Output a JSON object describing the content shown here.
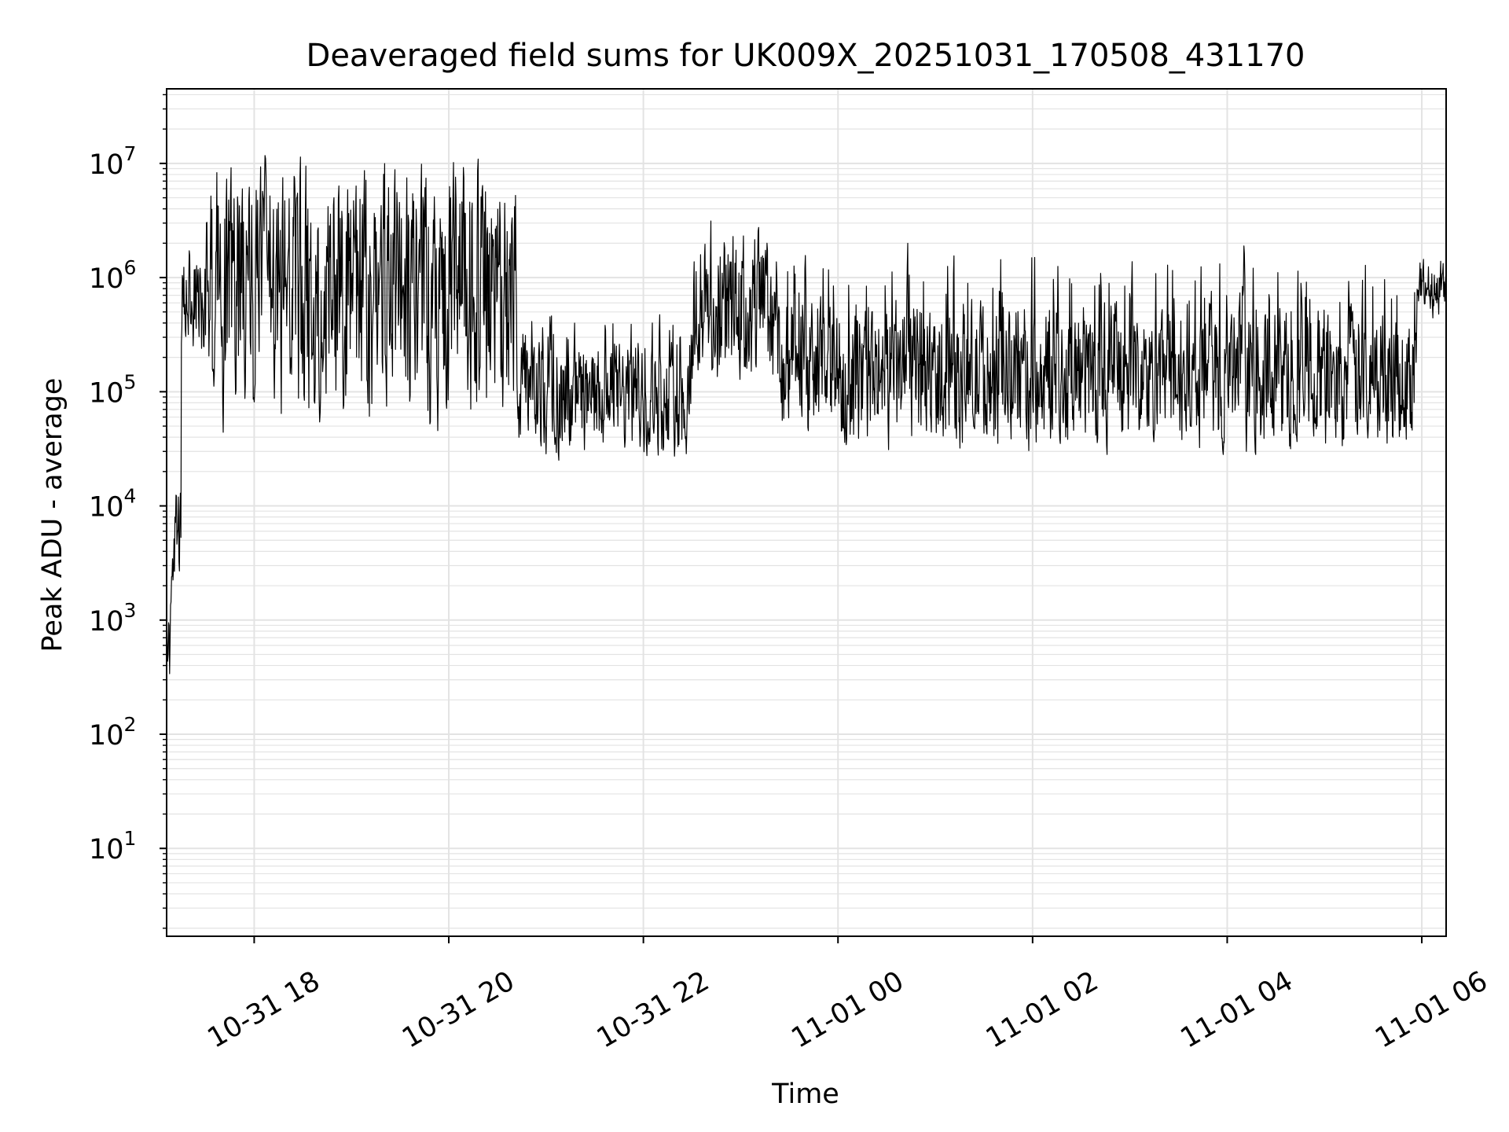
{
  "chart_data": {
    "type": "line",
    "title": "Deaveraged field sums for UK009X_20251031_170508_431170",
    "xlabel": "Time",
    "ylabel": "Peak ADU - average",
    "yscale": "log",
    "ylim": [
      1.7,
      45000000
    ],
    "xlim_hours": [
      17.1,
      30.25
    ],
    "grid": true,
    "series_color": "#000000",
    "grid_color": "#e3e3e3",
    "x_ticks": [
      {
        "hour": 18,
        "label": "10-31 18"
      },
      {
        "hour": 20,
        "label": "10-31 20"
      },
      {
        "hour": 22,
        "label": "10-31 22"
      },
      {
        "hour": 24,
        "label": "11-01 00"
      },
      {
        "hour": 26,
        "label": "11-01 02"
      },
      {
        "hour": 28,
        "label": "11-01 04"
      },
      {
        "hour": 30,
        "label": "11-01 06"
      }
    ],
    "y_ticks": [
      {
        "exp": 1,
        "base": "10",
        "sup": "1"
      },
      {
        "exp": 2,
        "base": "10",
        "sup": "2"
      },
      {
        "exp": 3,
        "base": "10",
        "sup": "3"
      },
      {
        "exp": 4,
        "base": "10",
        "sup": "4"
      },
      {
        "exp": 5,
        "base": "10",
        "sup": "5"
      },
      {
        "exp": 6,
        "base": "10",
        "sup": "6"
      },
      {
        "exp": 7,
        "base": "10",
        "sup": "7"
      }
    ],
    "series": [
      {
        "name": "Peak ADU - average",
        "segments": [
          {
            "start_hour": 17.1,
            "end_hour": 17.15,
            "log_low": 2.3,
            "log_high": 3.3,
            "log_center": 2.8,
            "spike_max": 3.4
          },
          {
            "start_hour": 17.15,
            "end_hour": 17.25,
            "log_low": 3.2,
            "log_high": 4.2,
            "log_center": 3.7,
            "spike_max": 4.5
          },
          {
            "start_hour": 17.25,
            "end_hour": 17.5,
            "log_low": 5.2,
            "log_high": 6.3,
            "log_center": 5.8,
            "spike_max": 6.4
          },
          {
            "start_hour": 17.5,
            "end_hour": 20.7,
            "log_low": 4.55,
            "log_high": 6.9,
            "log_center": 5.9,
            "spike_max": 7.33
          },
          {
            "start_hour": 20.7,
            "end_hour": 22.5,
            "log_low": 4.55,
            "log_high": 5.7,
            "log_center": 4.95,
            "spike_max": 5.85
          },
          {
            "start_hour": 22.5,
            "end_hour": 23.4,
            "log_low": 4.9,
            "log_high": 6.45,
            "log_center": 5.7,
            "spike_max": 6.7
          },
          {
            "start_hour": 23.4,
            "end_hour": 29.95,
            "log_low": 4.6,
            "log_high": 6.1,
            "log_center": 5.15,
            "spike_max": 6.5
          },
          {
            "start_hour": 29.95,
            "end_hour": 30.25,
            "log_low": 5.7,
            "log_high": 6.2,
            "log_center": 5.95,
            "spike_max": 6.2
          }
        ]
      }
    ]
  }
}
